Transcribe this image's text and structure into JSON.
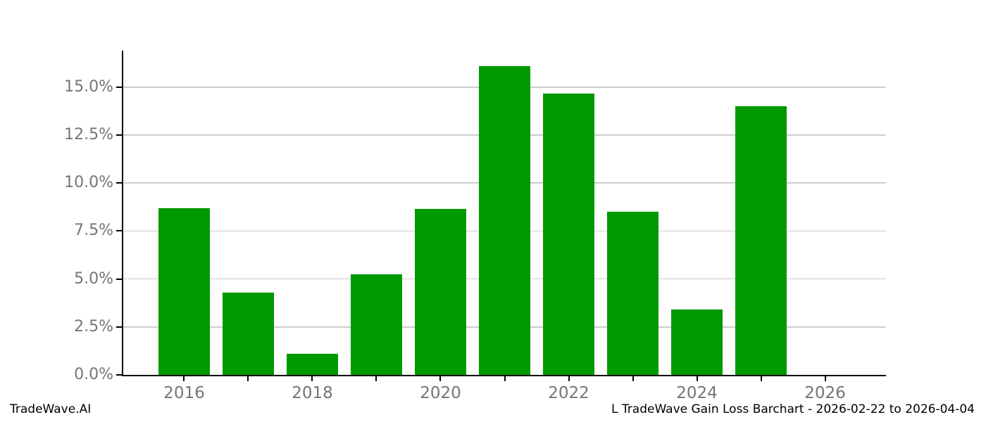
{
  "footer": {
    "left": "TradeWave.AI",
    "right": "L TradeWave Gain Loss Barchart - 2026-02-22 to 2026-04-04"
  },
  "colors": {
    "bar": "#009900",
    "grid": "#cccccc",
    "axis": "#000000",
    "tick_label": "#757575",
    "background": "#ffffff"
  },
  "chart_data": {
    "type": "bar",
    "title": "",
    "xlabel": "",
    "ylabel": "",
    "categories": [
      2016,
      2017,
      2018,
      2019,
      2020,
      2021,
      2022,
      2023,
      2024,
      2025
    ],
    "values": [
      8.7,
      4.3,
      1.1,
      5.25,
      8.65,
      16.1,
      14.65,
      8.5,
      3.4,
      14.0
    ],
    "value_unit": "%",
    "bar_width_years": 0.8,
    "xlim": [
      2015.05,
      2026.95
    ],
    "ylim": [
      0,
      16.9
    ],
    "yticks": [
      {
        "value": 0,
        "label": "0.0%"
      },
      {
        "value": 2.5,
        "label": "2.5%"
      },
      {
        "value": 5,
        "label": "5.0%"
      },
      {
        "value": 7.5,
        "label": "7.5%"
      },
      {
        "value": 10,
        "label": "10.0%"
      },
      {
        "value": 12.5,
        "label": "12.5%"
      },
      {
        "value": 15,
        "label": "15.0%"
      }
    ],
    "xticks": [
      {
        "value": 2016,
        "label": "2016"
      },
      {
        "value": 2017,
        "label": ""
      },
      {
        "value": 2018,
        "label": "2018"
      },
      {
        "value": 2019,
        "label": ""
      },
      {
        "value": 2020,
        "label": "2020"
      },
      {
        "value": 2021,
        "label": ""
      },
      {
        "value": 2022,
        "label": "2022"
      },
      {
        "value": 2023,
        "label": ""
      },
      {
        "value": 2024,
        "label": "2024"
      },
      {
        "value": 2025,
        "label": ""
      },
      {
        "value": 2026,
        "label": "2026"
      }
    ],
    "grid": "horizontal-only",
    "legend": "none"
  }
}
